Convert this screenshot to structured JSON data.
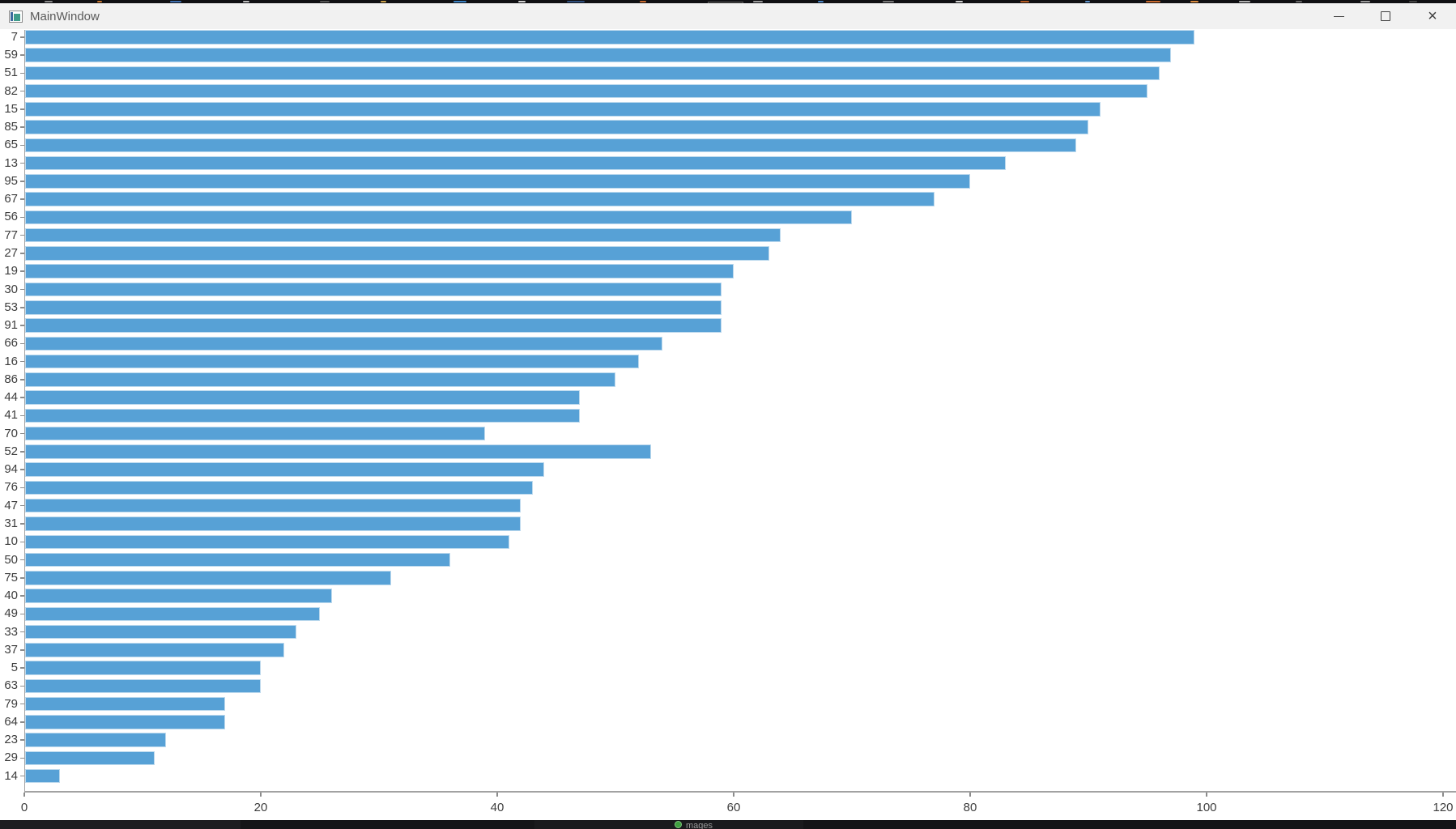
{
  "window": {
    "title": "MainWindow"
  },
  "titlebar": {
    "controls": [
      {
        "name": "minimize",
        "icon": "minimize-icon"
      },
      {
        "name": "maximize",
        "icon": "maximize-icon"
      },
      {
        "name": "close",
        "icon": "close-icon",
        "glyph": "×"
      }
    ]
  },
  "chart_data": {
    "type": "bar",
    "orientation": "horizontal",
    "title": "",
    "xlabel": "",
    "ylabel": "",
    "xlim": [
      0,
      120
    ],
    "xticks": [
      0,
      20,
      40,
      60,
      80,
      100,
      120
    ],
    "grid": false,
    "legend": false,
    "bar_color": "#57a1d6",
    "bar_edge_color": "#bad8ed",
    "categories": [
      7,
      59,
      51,
      82,
      15,
      85,
      65,
      13,
      95,
      67,
      56,
      77,
      27,
      19,
      30,
      53,
      91,
      66,
      16,
      86,
      44,
      41,
      70,
      52,
      94,
      76,
      47,
      31,
      10,
      50,
      75,
      40,
      49,
      33,
      37,
      5,
      63,
      79,
      64,
      23,
      29,
      14
    ],
    "values": [
      99,
      97,
      96,
      95,
      91,
      90,
      89,
      83,
      80,
      77,
      70,
      64,
      63,
      60,
      59,
      59,
      59,
      54,
      52,
      50,
      47,
      47,
      39,
      53,
      44,
      43,
      42,
      42,
      41,
      36,
      31,
      26,
      25,
      23,
      22,
      20,
      20,
      17,
      17,
      12,
      11,
      3
    ]
  },
  "background_fragments": {
    "taskbar_item_text": "mages"
  }
}
